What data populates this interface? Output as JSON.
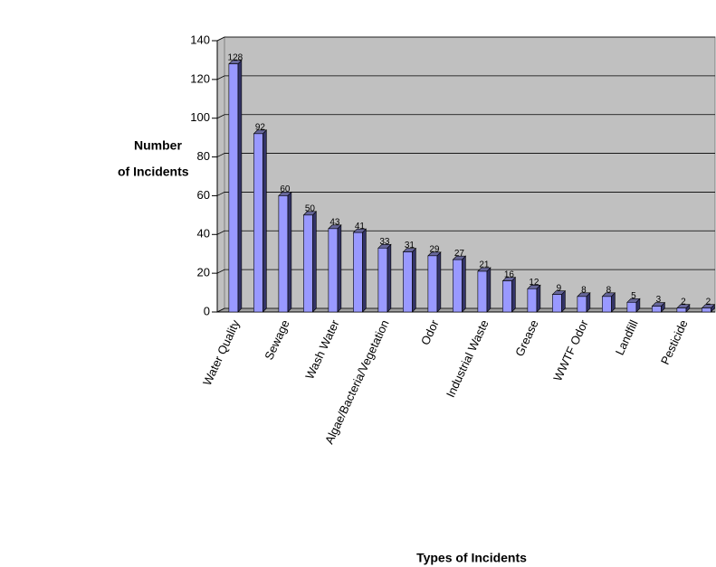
{
  "chart_data": {
    "type": "bar3d",
    "y_label": [
      "Number",
      "of Incidents"
    ],
    "x_label": "Types of Incidents",
    "categories": [
      "Water Quality",
      null,
      "Sewage",
      null,
      "Wash Water",
      null,
      "Algae/Bacteria/Vegetation",
      null,
      "Odor",
      null,
      "Industrial Waste",
      null,
      "Grease",
      null,
      "WWTF Odor",
      null,
      "Landfill",
      null,
      "Pesticide",
      null
    ],
    "values": [
      128,
      92,
      60,
      50,
      43,
      41,
      33,
      31,
      29,
      27,
      21,
      16,
      12,
      9,
      8,
      8,
      5,
      3,
      2,
      2
    ],
    "color": "#9999ff",
    "wall_color": "#c0c0c0",
    "ylim": [
      0,
      140
    ],
    "yticks": [
      0,
      20,
      40,
      60,
      80,
      100,
      120,
      140
    ],
    "grid": true
  }
}
